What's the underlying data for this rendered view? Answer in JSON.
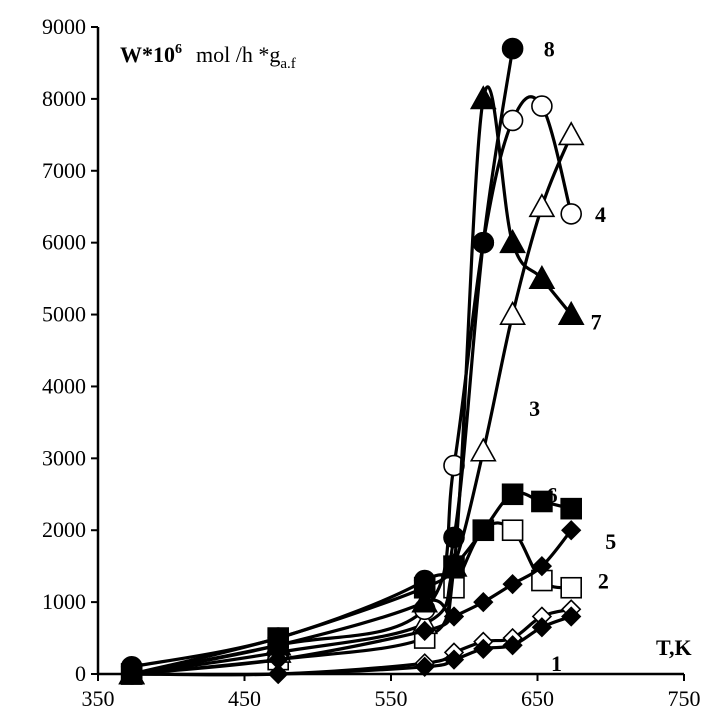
{
  "chart_data": {
    "type": "line",
    "title": "",
    "ylabel_parts": {
      "bold": "W*10",
      "sup": "6",
      "unit": "mol /h *g",
      "sub": "a.f"
    },
    "xlabel": "T,K",
    "xlim": [
      350,
      750
    ],
    "ylim": [
      0,
      9000
    ],
    "xticks": [
      350,
      450,
      550,
      650,
      750
    ],
    "yticks": [
      0,
      1000,
      2000,
      3000,
      4000,
      5000,
      6000,
      7000,
      8000,
      9000
    ],
    "grid": false,
    "legend": "none",
    "series": [
      {
        "name": "1",
        "marker": "diamond",
        "filled": false,
        "x": [
          373,
          473,
          573,
          593,
          613,
          633,
          653,
          673
        ],
        "y": [
          0,
          0,
          150,
          300,
          450,
          500,
          800,
          900
        ]
      },
      {
        "name": "2",
        "marker": "square",
        "filled": false,
        "x": [
          373,
          473,
          573,
          593,
          613,
          633,
          653,
          673
        ],
        "y": [
          0,
          200,
          500,
          1200,
          2000,
          2000,
          1300,
          1200
        ]
      },
      {
        "name": "3",
        "marker": "triangle",
        "filled": false,
        "x": [
          373,
          473,
          573,
          593,
          613,
          633,
          653,
          673
        ],
        "y": [
          0,
          300,
          700,
          1500,
          3100,
          5000,
          6500,
          7500
        ]
      },
      {
        "name": "4",
        "marker": "circle",
        "filled": false,
        "x": [
          373,
          473,
          573,
          593,
          613,
          633,
          653,
          673
        ],
        "y": [
          0,
          400,
          900,
          2900,
          6000,
          7700,
          7900,
          6400
        ]
      },
      {
        "name": "5",
        "marker": "diamond",
        "filled": true,
        "x": [
          373,
          473,
          573,
          593,
          613,
          633,
          653,
          673
        ],
        "y": [
          0,
          0,
          100,
          200,
          350,
          400,
          650,
          800
        ]
      },
      {
        "name": "5",
        "marker": "diamond",
        "filled": true,
        "label": "5",
        "x": [
          373,
          473,
          573,
          593,
          613,
          633,
          653,
          673
        ],
        "y": [
          0,
          200,
          600,
          800,
          1000,
          1250,
          1500,
          2000
        ]
      },
      {
        "name": "6",
        "marker": "square",
        "filled": true,
        "x": [
          373,
          473,
          573,
          593,
          613,
          633,
          653,
          673
        ],
        "y": [
          0,
          500,
          1200,
          1500,
          2000,
          2500,
          2400,
          2300
        ]
      },
      {
        "name": "7",
        "marker": "triangle",
        "filled": true,
        "x": [
          373,
          473,
          573,
          593,
          613,
          633,
          653,
          673
        ],
        "y": [
          0,
          400,
          1000,
          1500,
          8000,
          6000,
          5500,
          5000
        ]
      },
      {
        "name": "8",
        "marker": "circle",
        "filled": true,
        "x": [
          373,
          473,
          573,
          593,
          613,
          633
        ],
        "y": [
          100,
          500,
          1300,
          1900,
          6000,
          8700
        ]
      }
    ],
    "curve_labels": [
      {
        "text": "1",
        "x": 663,
        "y": 150
      },
      {
        "text": "2",
        "x": 695,
        "y": 1300
      },
      {
        "text": "3",
        "x": 648,
        "y": 3700
      },
      {
        "text": "4",
        "x": 693,
        "y": 6400
      },
      {
        "text": "5",
        "x": 700,
        "y": 1850
      },
      {
        "text": "6",
        "x": 660,
        "y": 2500
      },
      {
        "text": "7",
        "x": 690,
        "y": 4900
      },
      {
        "text": "8",
        "x": 658,
        "y": 8700
      }
    ]
  }
}
